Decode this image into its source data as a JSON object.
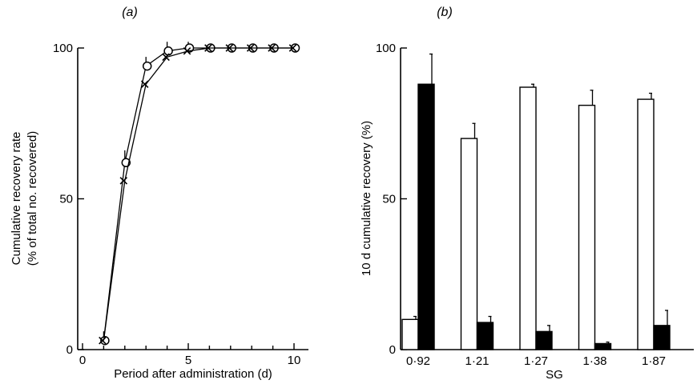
{
  "chart_data": [
    {
      "type": "scatter",
      "panel_label": "(a)",
      "xlabel": "Period after administration (d)",
      "ylabel_lines": [
        "Cumulative recovery rate",
        "(% of total no. recovered)"
      ],
      "xlim": [
        0,
        10
      ],
      "ylim": [
        0,
        100
      ],
      "xticks": [
        "0",
        "5",
        "10"
      ],
      "yticks": [
        "0",
        "50",
        "100"
      ],
      "series": [
        {
          "marker": "circle",
          "x": [
            1,
            2,
            3,
            4,
            5,
            6,
            7,
            8,
            9,
            10
          ],
          "y": [
            3,
            62,
            94,
            99,
            100,
            100,
            100,
            100,
            100,
            100
          ],
          "err": [
            2,
            3,
            2,
            2,
            1,
            0,
            0,
            0,
            0,
            0
          ]
        },
        {
          "marker": "x",
          "x": [
            1,
            2,
            3,
            4,
            5,
            6,
            7,
            8,
            9,
            10
          ],
          "y": [
            3,
            56,
            88,
            97,
            99,
            100,
            100,
            100,
            100,
            100
          ],
          "err": [
            0,
            0,
            0,
            0,
            0,
            0,
            0,
            0,
            0,
            0
          ]
        }
      ]
    },
    {
      "type": "bar",
      "panel_label": "(b)",
      "xlabel": "SG",
      "ylabel": "10 d cumulative recovery (%)",
      "ylim": [
        0,
        100
      ],
      "yticks": [
        "0",
        "50",
        "100"
      ],
      "categories": [
        "0·92",
        "1·21",
        "1·27",
        "1·38",
        "1·87"
      ],
      "series": [
        {
          "fill": "white",
          "values": [
            10,
            70,
            87,
            81,
            83
          ],
          "err": [
            1,
            5,
            1,
            5,
            2
          ]
        },
        {
          "fill": "black",
          "values": [
            88,
            9,
            6,
            2,
            8
          ],
          "err": [
            10,
            2,
            2,
            0.5,
            5
          ]
        }
      ]
    }
  ]
}
